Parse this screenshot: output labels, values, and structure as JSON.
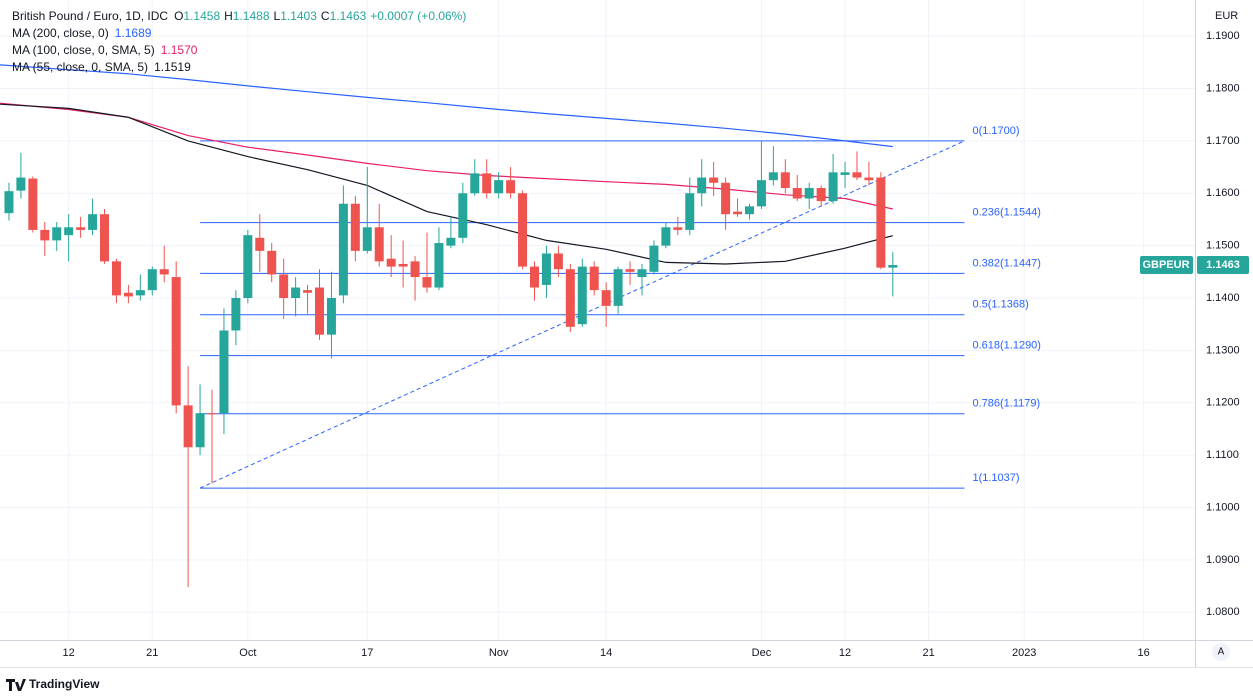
{
  "chart_data": {
    "type": "candlestick",
    "title": "British Pound / Euro, 1D, IDC",
    "ohlc_labels": [
      "O",
      "H",
      "L",
      "C"
    ],
    "change": "+0.0007 (+0.06%)",
    "symbol": "GBPEUR",
    "y_unit": "EUR",
    "scale_button": "A",
    "brand": "TradingView",
    "up_color": "#26a69a",
    "down_color": "#ef5350",
    "grid": true,
    "xlim": [
      -0.75,
      99.3
    ],
    "xticks": [
      {
        "value": 5,
        "label": "12"
      },
      {
        "value": 12,
        "label": "21"
      },
      {
        "value": 20,
        "label": "Oct"
      },
      {
        "value": 30,
        "label": "17"
      },
      {
        "value": 41,
        "label": "Nov"
      },
      {
        "value": 50,
        "label": "14"
      },
      {
        "value": 63,
        "label": "Dec"
      },
      {
        "value": 70,
        "label": "12"
      },
      {
        "value": 77,
        "label": "21"
      },
      {
        "value": 85,
        "label": "2023"
      },
      {
        "value": 95,
        "label": "16"
      }
    ],
    "ylim": [
      1.0747,
      1.1969
    ],
    "yticks": [
      {
        "value": 1.19,
        "label": "1.1900"
      },
      {
        "value": 1.18,
        "label": "1.1800"
      },
      {
        "value": 1.17,
        "label": "1.1700"
      },
      {
        "value": 1.16,
        "label": "1.1600"
      },
      {
        "value": 1.15,
        "label": "1.1500"
      },
      {
        "value": 1.14,
        "label": "1.1400"
      },
      {
        "value": 1.13,
        "label": "1.1300"
      },
      {
        "value": 1.12,
        "label": "1.1200"
      },
      {
        "value": 1.11,
        "label": "1.1100"
      },
      {
        "value": 1.1,
        "label": "1.1000"
      },
      {
        "value": 1.09,
        "label": "1.0900"
      },
      {
        "value": 1.08,
        "label": "1.0800"
      }
    ],
    "open": [
      1.1562,
      1.1605,
      1.1628,
      1.153,
      1.151,
      1.152,
      1.1535,
      1.153,
      1.156,
      1.147,
      1.141,
      1.1405,
      1.1415,
      1.1455,
      1.144,
      1.1195,
      1.1115,
      1.118,
      1.118,
      1.1338,
      1.14,
      1.1515,
      1.149,
      1.1445,
      1.14,
      1.1415,
      1.142,
      1.133,
      1.1405,
      1.158,
      1.149,
      1.1535,
      1.1475,
      1.1465,
      1.147,
      1.144,
      1.142,
      1.15,
      1.1515,
      1.16,
      1.1638,
      1.16,
      1.1625,
      1.16,
      1.146,
      1.1425,
      1.1485,
      1.1455,
      1.135,
      1.146,
      1.1415,
      1.1385,
      1.1455,
      1.144,
      1.145,
      1.15,
      1.1535,
      1.153,
      1.16,
      1.163,
      1.162,
      1.1565,
      1.156,
      1.1575,
      1.1625,
      1.164,
      1.161,
      1.159,
      1.161,
      1.1585,
      1.1635,
      1.164,
      1.163,
      1.163,
      1.1458
    ],
    "high": [
      1.162,
      1.1677,
      1.1632,
      1.1545,
      1.1545,
      1.156,
      1.1555,
      1.159,
      1.157,
      1.1475,
      1.1425,
      1.1445,
      1.146,
      1.15,
      1.147,
      1.127,
      1.1235,
      1.1225,
      1.138,
      1.1415,
      1.153,
      1.156,
      1.1505,
      1.1475,
      1.144,
      1.1425,
      1.1455,
      1.145,
      1.1615,
      1.1595,
      1.165,
      1.158,
      1.152,
      1.151,
      1.148,
      1.1525,
      1.1535,
      1.1555,
      1.162,
      1.1665,
      1.1665,
      1.164,
      1.165,
      1.1605,
      1.147,
      1.15,
      1.15,
      1.1465,
      1.1475,
      1.147,
      1.143,
      1.146,
      1.147,
      1.1465,
      1.151,
      1.1545,
      1.1555,
      1.163,
      1.1665,
      1.166,
      1.163,
      1.159,
      1.158,
      1.17,
      1.169,
      1.1665,
      1.1635,
      1.162,
      1.1615,
      1.1675,
      1.166,
      1.168,
      1.166,
      1.164,
      1.1488
    ],
    "low": [
      1.1548,
      1.159,
      1.1525,
      1.148,
      1.149,
      1.147,
      1.1515,
      1.152,
      1.1465,
      1.139,
      1.139,
      1.1395,
      1.1405,
      1.143,
      1.118,
      1.0848,
      1.11,
      1.1046,
      1.114,
      1.131,
      1.139,
      1.145,
      1.143,
      1.136,
      1.1365,
      1.137,
      1.132,
      1.1285,
      1.139,
      1.147,
      1.1485,
      1.146,
      1.144,
      1.142,
      1.1395,
      1.141,
      1.1415,
      1.1495,
      1.1505,
      1.1595,
      1.159,
      1.159,
      1.159,
      1.1455,
      1.1395,
      1.14,
      1.144,
      1.1335,
      1.1345,
      1.1405,
      1.1345,
      1.137,
      1.1425,
      1.1405,
      1.1445,
      1.1495,
      1.152,
      1.152,
      1.1575,
      1.1595,
      1.153,
      1.1555,
      1.155,
      1.157,
      1.1615,
      1.16,
      1.1585,
      1.157,
      1.1575,
      1.158,
      1.161,
      1.1625,
      1.1615,
      1.1455,
      1.1403
    ],
    "close": [
      1.1604,
      1.163,
      1.153,
      1.151,
      1.1535,
      1.1535,
      1.153,
      1.156,
      1.147,
      1.1405,
      1.1403,
      1.1415,
      1.1455,
      1.1445,
      1.1195,
      1.1115,
      1.118,
      1.1178,
      1.1338,
      1.14,
      1.152,
      1.149,
      1.1445,
      1.14,
      1.142,
      1.141,
      1.133,
      1.14,
      1.158,
      1.149,
      1.1535,
      1.147,
      1.146,
      1.146,
      1.144,
      1.142,
      1.1505,
      1.1515,
      1.16,
      1.1638,
      1.16,
      1.1625,
      1.16,
      1.146,
      1.142,
      1.1485,
      1.1455,
      1.1345,
      1.146,
      1.1415,
      1.1385,
      1.1455,
      1.145,
      1.1455,
      1.15,
      1.1535,
      1.153,
      1.16,
      1.163,
      1.162,
      1.156,
      1.156,
      1.1575,
      1.1625,
      1.164,
      1.161,
      1.159,
      1.161,
      1.1585,
      1.164,
      1.164,
      1.163,
      1.1625,
      1.1458,
      1.1463
    ],
    "series": [
      {
        "name": "MA (200, close, 0)",
        "color": "#2962ff",
        "x": [
          -0.75,
          5,
          10,
          15,
          20,
          25,
          30,
          35,
          40,
          45,
          50,
          55,
          60,
          65,
          70,
          74
        ],
        "values": [
          1.1845,
          1.1836,
          1.1828,
          1.1817,
          1.1805,
          1.1794,
          1.1783,
          1.1773,
          1.1762,
          1.1752,
          1.1743,
          1.1734,
          1.1724,
          1.1713,
          1.17,
          1.1689
        ]
      },
      {
        "name": "MA (100, close, 0, SMA, 5)",
        "color": "#e91e63",
        "x": [
          -0.75,
          5,
          10,
          15,
          20,
          25,
          30,
          35,
          40,
          45,
          50,
          55,
          60,
          65,
          70,
          74
        ],
        "values": [
          1.1772,
          1.176,
          1.1745,
          1.171,
          1.1688,
          1.1673,
          1.1657,
          1.1643,
          1.1634,
          1.1628,
          1.1622,
          1.1617,
          1.1608,
          1.1597,
          1.159,
          1.157
        ],
        "value_labels": [
          null,
          null,
          null,
          null,
          null,
          null,
          null,
          null,
          null,
          null,
          null,
          null,
          null,
          null,
          null,
          "1.1570"
        ]
      },
      {
        "name": "MA (55, close, 0, SMA, 5)",
        "color": "#131722",
        "x": [
          -0.75,
          5,
          10,
          15,
          20,
          25,
          30,
          35,
          40,
          45,
          50,
          55,
          60,
          65,
          70,
          74
        ],
        "values": [
          1.177,
          1.1762,
          1.1745,
          1.17,
          1.167,
          1.1645,
          1.1615,
          1.1565,
          1.154,
          1.151,
          1.1493,
          1.1468,
          1.1465,
          1.147,
          1.1495,
          1.1519
        ]
      }
    ],
    "fib": {
      "color": "#2962ff",
      "x": [
        16,
        80
      ],
      "levels": [
        {
          "value": 1.17,
          "label": "0(1.1700)"
        },
        {
          "value": 1.1544,
          "label": "0.236(1.1544)"
        },
        {
          "value": 1.1447,
          "label": "0.382(1.1447)"
        },
        {
          "value": 1.1368,
          "label": "0.5(1.1368)"
        },
        {
          "value": 1.129,
          "label": "0.618(1.1290)"
        },
        {
          "value": 1.1179,
          "label": "0.786(1.1179)"
        },
        {
          "value": 1.1037,
          "label": "1(1.1037)"
        }
      ]
    }
  }
}
